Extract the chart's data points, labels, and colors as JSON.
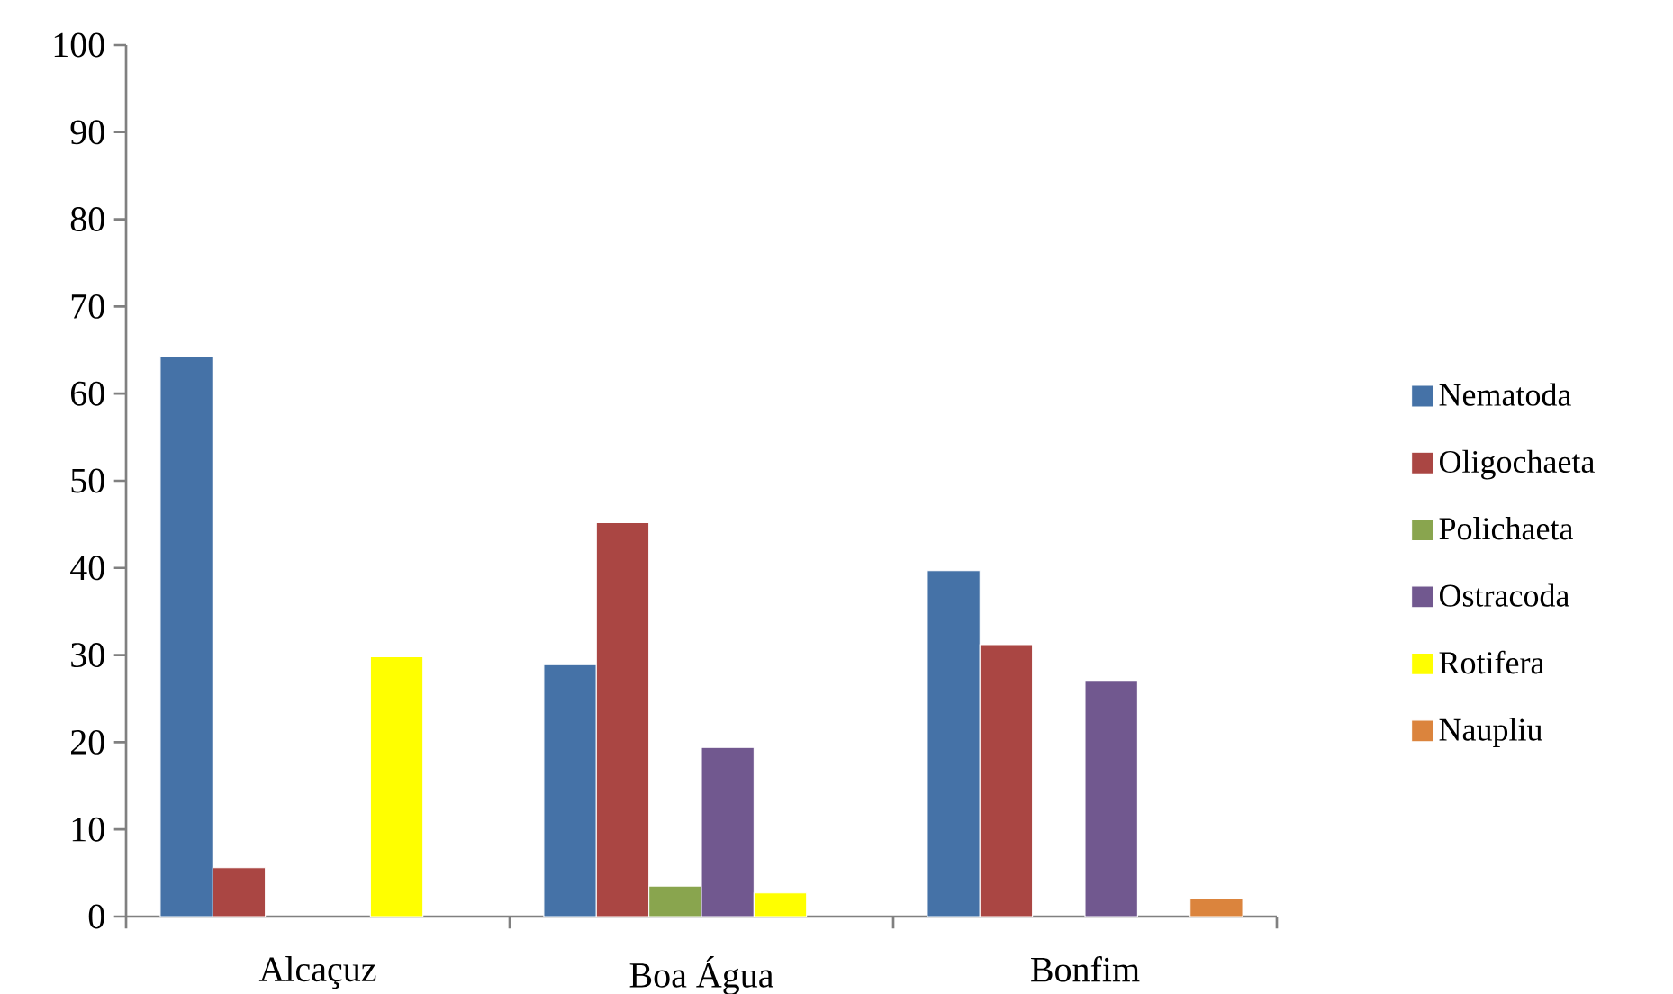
{
  "chart_data": {
    "type": "bar",
    "categories": [
      "Alcaçuz",
      "Boa Água",
      "Bonfim"
    ],
    "series": [
      {
        "name": "Nematoda",
        "color": "#4572a7",
        "values": [
          64.3,
          28.9,
          39.7
        ]
      },
      {
        "name": "Oligochaeta",
        "color": "#aa4643",
        "values": [
          5.6,
          45.2,
          31.2
        ]
      },
      {
        "name": "Polichaeta",
        "color": "#89a54e",
        "values": [
          null,
          3.5,
          null
        ]
      },
      {
        "name": "Ostracoda",
        "color": "#71588f",
        "values": [
          null,
          19.4,
          27.1
        ]
      },
      {
        "name": "Rotifera",
        "color": "#ffff00",
        "values": [
          29.8,
          2.7,
          null
        ]
      },
      {
        "name": "Naupliu",
        "color": "#db843d",
        "values": [
          null,
          null,
          2.1
        ]
      }
    ],
    "ylim": [
      0,
      100
    ],
    "yticks": [
      0,
      10,
      20,
      30,
      40,
      50,
      60,
      70,
      80,
      90,
      100
    ],
    "grid": false,
    "legend": "right"
  }
}
